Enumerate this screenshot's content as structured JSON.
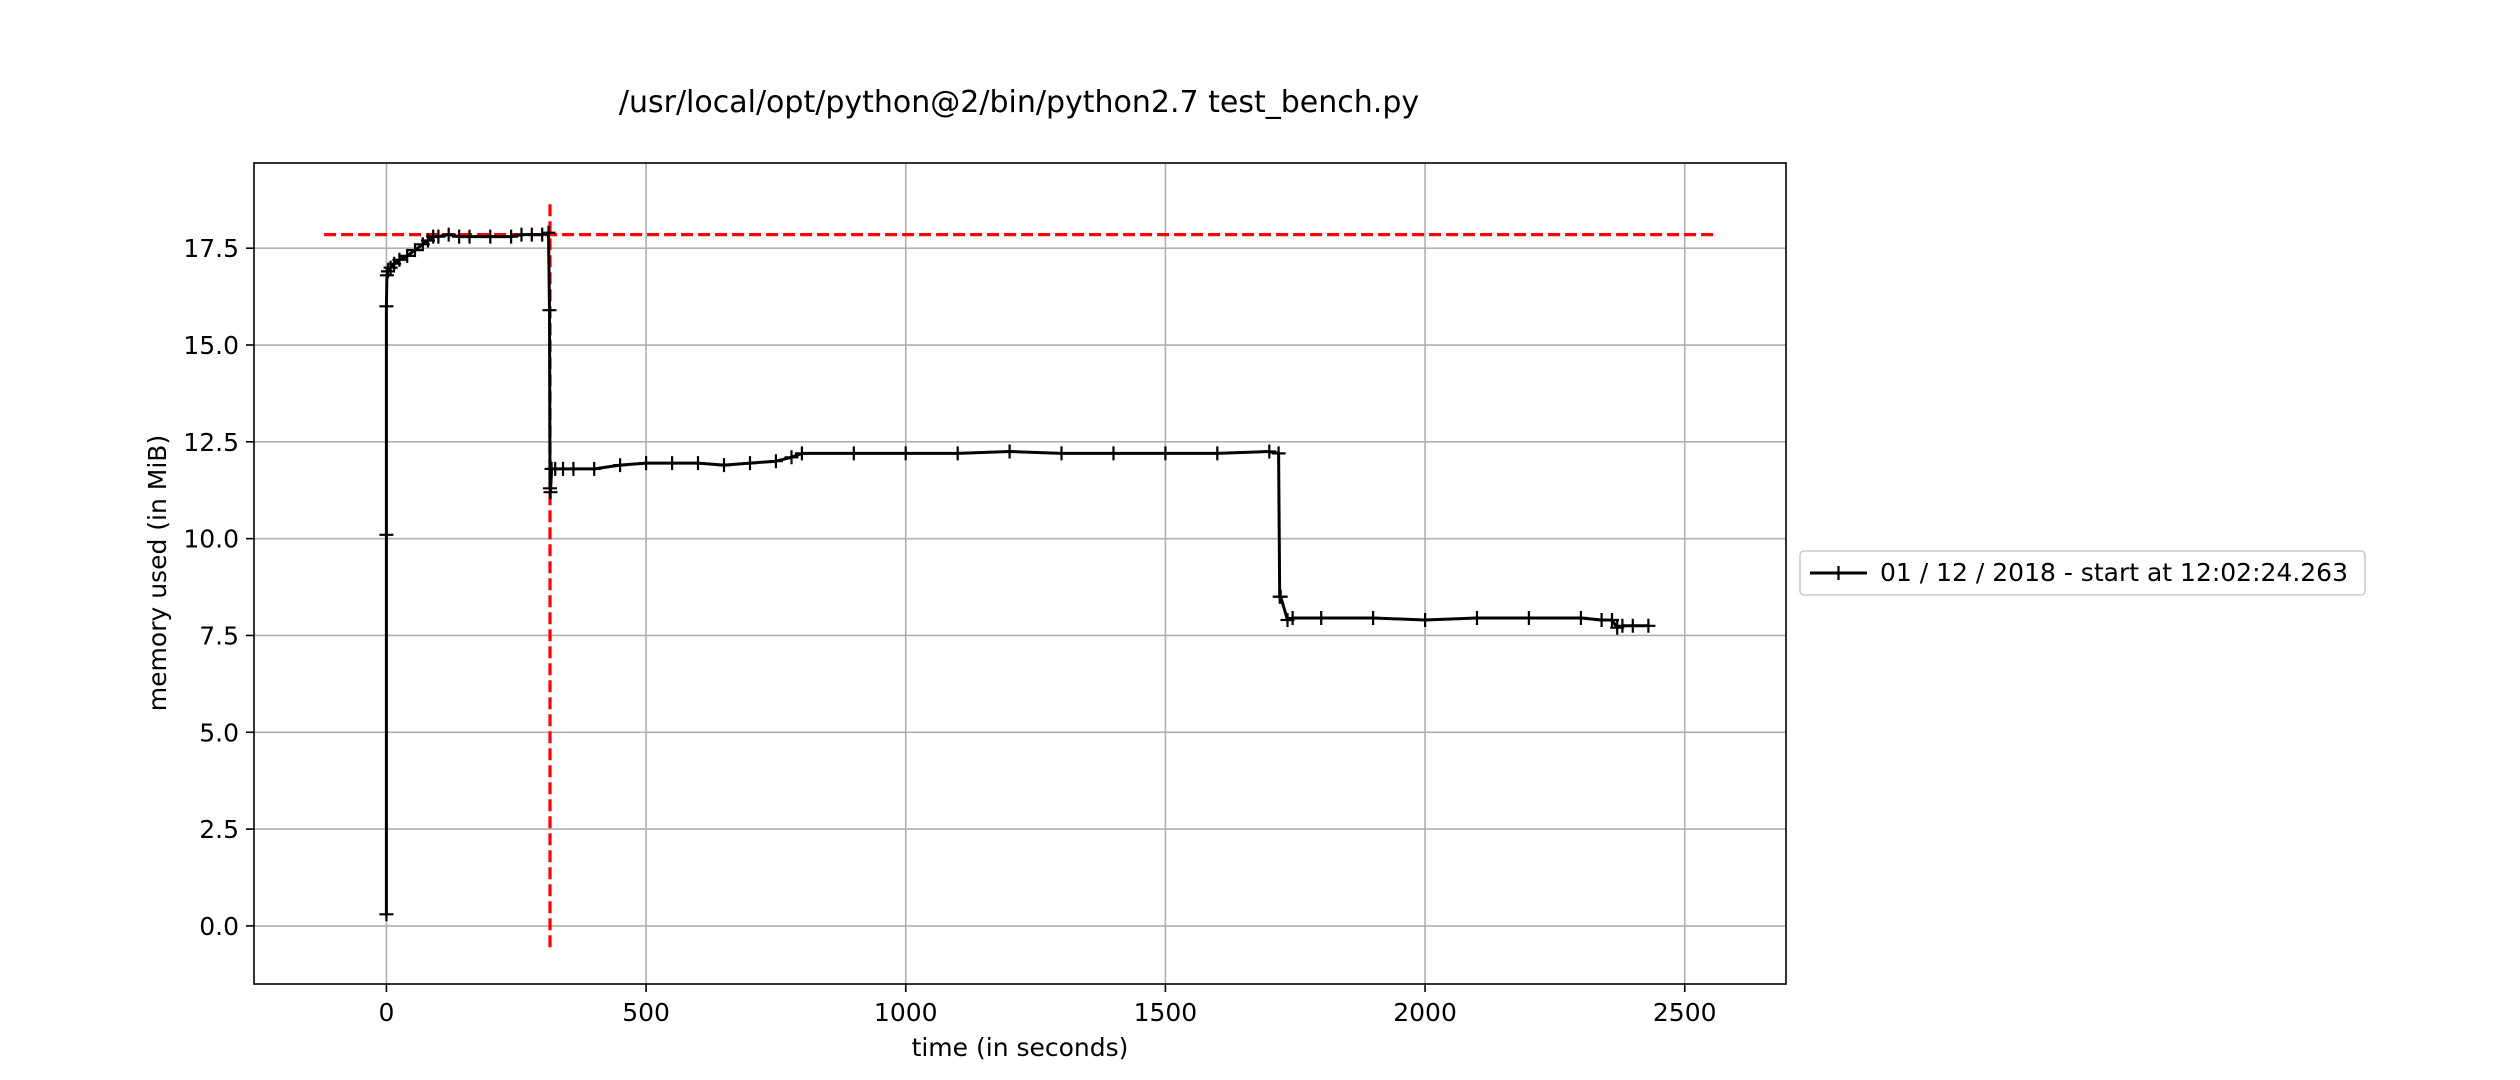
{
  "chart_data": {
    "type": "line",
    "title": "/usr/local/opt/python@2/bin/python2.7 test_bench.py",
    "xlabel": "time (in seconds)",
    "ylabel": "memory used (in MiB)",
    "xlim": [
      -255,
      2695
    ],
    "ylim": [
      -1.5,
      19.7
    ],
    "xticks": [
      0,
      500,
      1000,
      1500,
      2000,
      2500
    ],
    "xtick_labels": [
      "0",
      "500",
      "1000",
      "1500",
      "2000",
      "2500"
    ],
    "yticks": [
      0,
      2.5,
      5,
      7.5,
      10,
      12.5,
      15,
      17.5
    ],
    "ytick_labels": [
      "0.0",
      "2.5",
      "5.0",
      "7.5",
      "10.0",
      "12.5",
      "15.0",
      "17.5"
    ],
    "grid": true,
    "legend_position": "outside-right",
    "series": [
      {
        "name": "01 / 12 / 2018 - start at 12:02:24.263",
        "color": "#000000",
        "marker": "plus",
        "x": [
          0,
          0,
          0,
          1,
          3,
          8,
          15,
          25,
          40,
          55,
          70,
          80,
          90,
          100,
          120,
          140,
          160,
          200,
          240,
          260,
          280,
          300,
          312,
          314,
          315,
          316,
          318,
          325,
          340,
          360,
          400,
          450,
          500,
          550,
          600,
          650,
          700,
          750,
          780,
          800,
          900,
          1000,
          1100,
          1200,
          1300,
          1400,
          1500,
          1600,
          1700,
          1718,
          1720,
          1722,
          1735,
          1745,
          1800,
          1900,
          2000,
          2100,
          2200,
          2300,
          2340,
          2360,
          2370,
          2380,
          2400,
          2430
        ],
        "y": [
          0.3,
          10.1,
          16.0,
          16.8,
          16.9,
          17.0,
          17.1,
          17.2,
          17.3,
          17.45,
          17.6,
          17.7,
          17.8,
          17.8,
          17.85,
          17.8,
          17.8,
          17.8,
          17.8,
          17.85,
          17.85,
          17.85,
          17.9,
          15.9,
          11.3,
          11.2,
          11.8,
          11.8,
          11.8,
          11.8,
          11.8,
          11.9,
          11.95,
          11.95,
          11.95,
          11.9,
          11.95,
          12.0,
          12.1,
          12.2,
          12.2,
          12.2,
          12.2,
          12.25,
          12.2,
          12.2,
          12.2,
          12.2,
          12.25,
          12.2,
          8.5,
          8.5,
          7.9,
          7.95,
          7.95,
          7.95,
          7.9,
          7.95,
          7.95,
          7.95,
          7.9,
          7.9,
          7.7,
          7.75,
          7.75,
          7.75
        ]
      }
    ],
    "reference_lines": [
      {
        "orientation": "horizontal",
        "value": 17.85,
        "x_range": [
          -120,
          2555
        ],
        "color": "#ff0000",
        "style": "dashed"
      },
      {
        "orientation": "vertical",
        "value": 315,
        "y_range": [
          -0.55,
          18.75
        ],
        "color": "#ff0000",
        "style": "dashed"
      }
    ]
  }
}
